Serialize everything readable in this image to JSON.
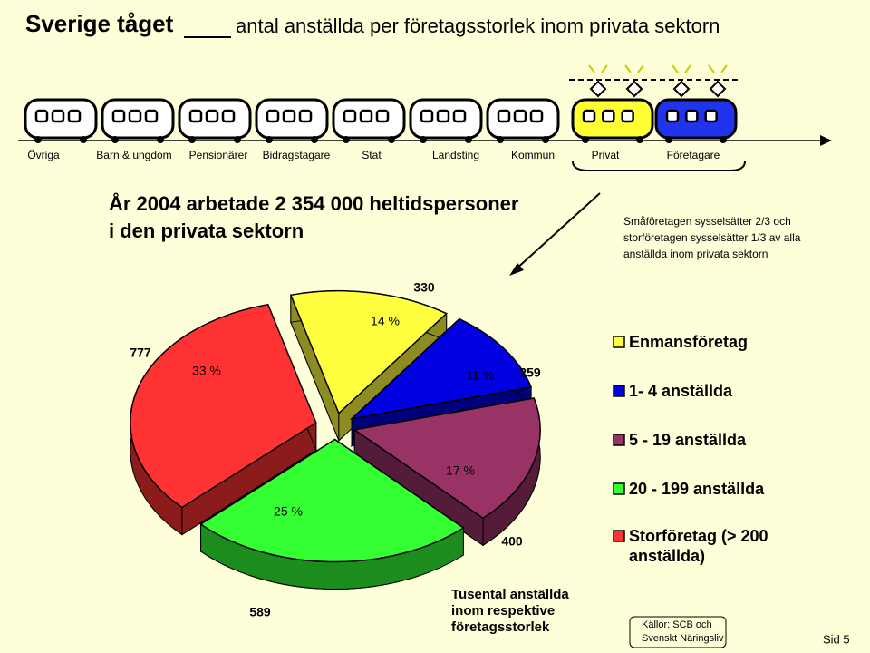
{
  "header": {
    "title": "Sverige tåget",
    "subtitle": "antal anställda per företagsstorlek inom privata sektorn"
  },
  "train": {
    "cars": [
      "Övriga",
      "Barn & ungdom",
      "Pensionärer",
      "Bidragstagare",
      "Stat",
      "Landsting",
      "Kommun",
      "Privat",
      "Företagare"
    ]
  },
  "headline": [
    "År 2004 arbetade 2 354 000 heltidspersoner",
    "i den privata sektorn"
  ],
  "note": [
    "Småföretagen sysselsätter 2/3 och",
    "storföretagen sysselsätter 1/3 av alla",
    "anställda inom privata sektorn"
  ],
  "chart_data": {
    "type": "pie",
    "categories": [
      "Enmansföretag",
      "1- 4 anställda",
      "5 - 19 anställda",
      "20 - 199 anställda",
      "Storföretag (> 200 anställda)"
    ],
    "values": [
      14,
      11,
      17,
      25,
      33
    ],
    "value_labels": [
      "14 %",
      "11 %",
      "17 %",
      "25 %",
      "33 %"
    ],
    "amounts": [
      330,
      259,
      400,
      589,
      777
    ],
    "colors": [
      "#ffff40",
      "#0000e0",
      "#993366",
      "#33ff33",
      "#ff3333"
    ]
  },
  "unit_note": [
    "Tusental anställda",
    "inom respektive",
    "företagsstorlek"
  ],
  "source": [
    "Källor: SCB och",
    "Svenskt Näringsliv"
  ],
  "page": "Sid 5"
}
